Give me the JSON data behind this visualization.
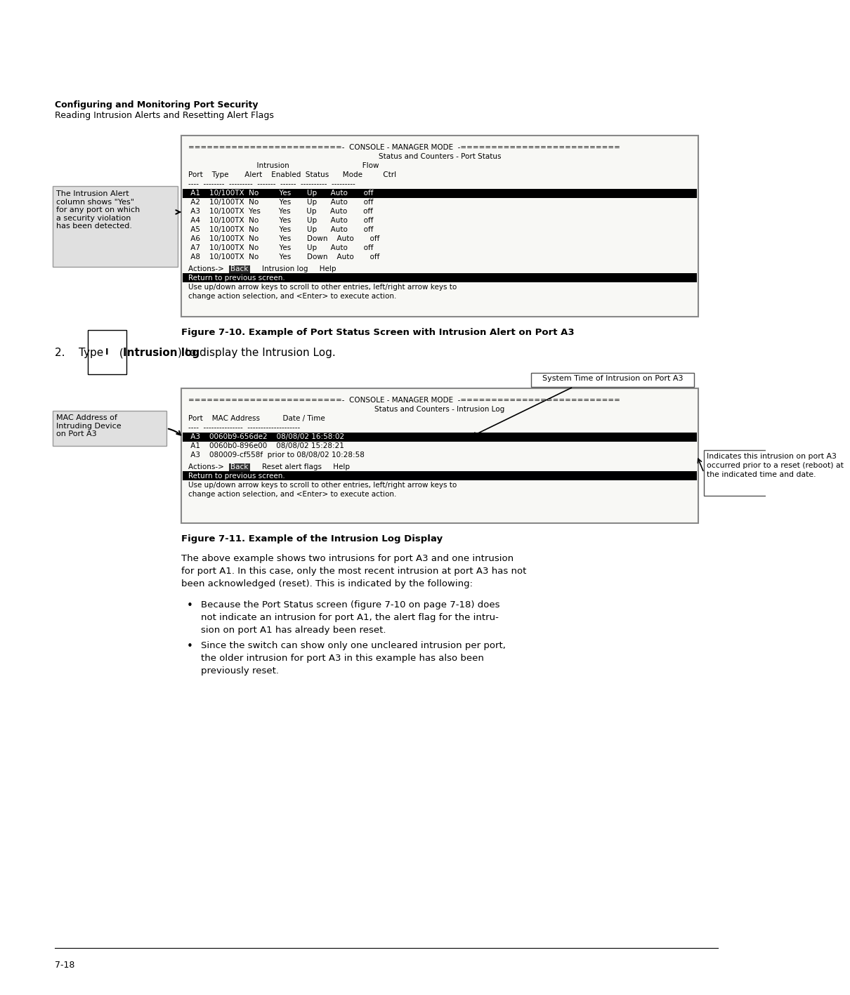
{
  "page_bg": "#ffffff",
  "header_bold": "Configuring and Monitoring Port Security",
  "header_normal": "Reading Intrusion Alerts and Resetting Alert Flags",
  "screen1_title_top": "=========================-  CONSOLE - MANAGER MODE  -==========================",
  "screen1_title2": "Status and Counters - Port Status",
  "screen1_col_header1": "                              Intrusion                                Flow",
  "screen1_col_header2": "Port    Type       Alert    Enabled  Status      Mode         Ctrl",
  "screen1_col_dashes": "----  --------  ---------  -------  ------  ----------  ---------",
  "screen1_rows": [
    {
      "port": "A1",
      "type": "10/100TX",
      "alert": "No",
      "enabled": "Yes",
      "status": "Up",
      "mode": "Auto",
      "ctrl": "off",
      "highlight": true,
      "alert_underline": false
    },
    {
      "port": "A2",
      "type": "10/100TX",
      "alert": "No",
      "enabled": "Yes",
      "status": "Up",
      "mode": "Auto",
      "ctrl": "off",
      "highlight": false,
      "alert_underline": false
    },
    {
      "port": "A3",
      "type": "10/100TX",
      "alert": "Yes",
      "enabled": "Yes",
      "status": "Up",
      "mode": "Auto",
      "ctrl": "off",
      "highlight": false,
      "alert_underline": true
    },
    {
      "port": "A4",
      "type": "10/100TX",
      "alert": "No",
      "enabled": "Yes",
      "status": "Up",
      "mode": "Auto",
      "ctrl": "off",
      "highlight": false,
      "alert_underline": false
    },
    {
      "port": "A5",
      "type": "10/100TX",
      "alert": "No",
      "enabled": "Yes",
      "status": "Up",
      "mode": "Auto",
      "ctrl": "off",
      "highlight": false,
      "alert_underline": false
    },
    {
      "port": "A6",
      "type": "10/100TX",
      "alert": "No",
      "enabled": "Yes",
      "status": "Down",
      "mode": "Auto",
      "ctrl": "off",
      "highlight": false,
      "alert_underline": false
    },
    {
      "port": "A7",
      "type": "10/100TX",
      "alert": "No",
      "enabled": "Yes",
      "status": "Up",
      "mode": "Auto",
      "ctrl": "off",
      "highlight": false,
      "alert_underline": false
    },
    {
      "port": "A8",
      "type": "10/100TX",
      "alert": "No",
      "enabled": "Yes",
      "status": "Down",
      "mode": "Auto",
      "ctrl": "off",
      "highlight": false,
      "alert_underline": false
    }
  ],
  "screen1_status_bar": "Return to previous screen.",
  "screen1_help1": "Use up/down arrow keys to scroll to other entries, left/right arrow keys to",
  "screen1_help2": "change action selection, and <Enter> to execute action.",
  "callout1_text": "The Intrusion Alert\ncolumn shows \"Yes\"\nfor any port on which\na security violation\nhas been detected.",
  "figure1_caption": "Figure 7-10. Example of Port Status Screen with Intrusion Alert on Port A3",
  "screen2_title_top": "=========================-  CONSOLE - MANAGER MODE  -==========================",
  "screen2_title2": "Status and Counters - Intrusion Log",
  "screen2_col_header": "Port    MAC Address          Date / Time",
  "screen2_col_dashes": "----  ---------------  --------------------",
  "screen2_rows": [
    {
      "port": "A3",
      "mac": "0060b9-656de2",
      "datetime": "    08/08/02 16:58:02",
      "highlight": true
    },
    {
      "port": "A1",
      "mac": "0060b0-896e00",
      "datetime": "    08/08/02 15:28:21",
      "highlight": false
    },
    {
      "port": "A3",
      "mac": "080009-cf558f",
      "datetime": "  prior to 08/08/02 10:28:58",
      "highlight": false
    }
  ],
  "screen2_status_bar": "Return to previous screen.",
  "screen2_help1": "Use up/down arrow keys to scroll to other entries, left/right arrow keys to",
  "screen2_help2": "change action selection, and <Enter> to execute action.",
  "callout2_text": "MAC Address of\nIntruding Device\non Port A3",
  "callout3_text": "System Time of Intrusion on Port A3",
  "callout4_text": "Indicates this intrusion on port A3\noccurred prior to a reset (reboot) at\nthe indicated time and date.",
  "figure2_caption": "Figure 7-11. Example of the Intrusion Log Display",
  "body_para1": "The above example shows two intrusions for port A3 and one intrusion\nfor port A1. In this case, only the most recent intrusion at port A3 has not\nbeen acknowledged (reset). This is indicated by the following:",
  "bullet1": "Because the Port Status screen (figure 7-10 on page 7-18) does\nnot indicate an intrusion for port A1, the alert flag for the intru-\nsion on port A1 has already been reset.",
  "bullet2": "Since the switch can show only one uncleared intrusion per port,\nthe older intrusion for port A3 in this example has also been\npreviously reset.",
  "footer_text": "7-18",
  "mono_font": "Courier New",
  "mono_size": 7.5,
  "screen_bg": "#f8f8f5",
  "screen_border": "#888888",
  "highlight_bg": "#000000",
  "highlight_fg": "#ffffff",
  "status_bar_bg": "#000000",
  "status_bar_fg": "#ffffff",
  "callout_bg": "#e0e0e0",
  "back_button_bg": "#333333",
  "back_button_fg": "#ffffff"
}
